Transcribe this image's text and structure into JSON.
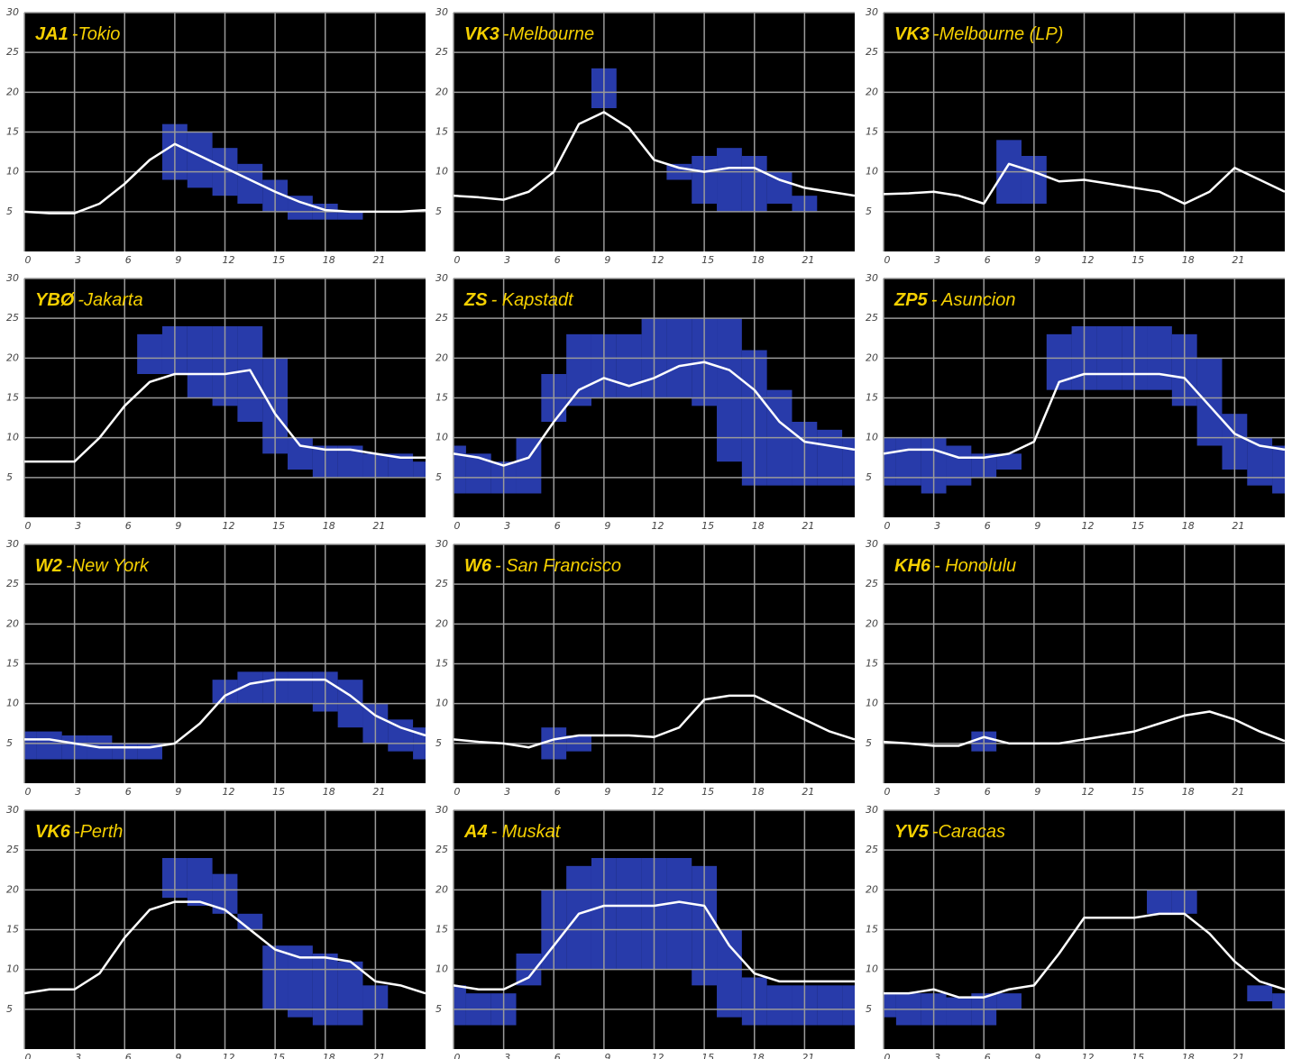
{
  "chart_data": [
    {
      "type": "line",
      "title_call": "JA1",
      "title_name": "-Tokio",
      "color": "#ffffff",
      "band_color": "#2f45c8",
      "x": [
        0,
        1.5,
        3,
        4.5,
        6,
        7.5,
        9,
        10.5,
        12,
        13.5,
        15,
        16.5,
        18,
        19.5,
        21,
        22.5,
        24
      ],
      "values": [
        5,
        4.8,
        4.8,
        6,
        8.5,
        11.5,
        13.5,
        12,
        10.5,
        9,
        7.5,
        6.2,
        5.2,
        5,
        5,
        5,
        5.2
      ],
      "band_low": [
        null,
        null,
        null,
        null,
        null,
        null,
        9,
        8,
        7,
        6,
        5,
        4,
        4,
        4,
        null,
        null,
        null
      ],
      "band_high": [
        null,
        null,
        null,
        null,
        null,
        null,
        16,
        15,
        13,
        11,
        9,
        7,
        6,
        5,
        null,
        null,
        null
      ],
      "xlim": [
        0,
        24
      ],
      "ylim": [
        0,
        30
      ],
      "xticks": [
        0,
        3,
        6,
        9,
        12,
        15,
        18,
        21
      ],
      "yticks": [
        5,
        10,
        15,
        20,
        25,
        30
      ]
    },
    {
      "type": "line",
      "title_call": "VK3",
      "title_name": "-Melbourne",
      "color": "#ffffff",
      "band_color": "#2f45c8",
      "x": [
        0,
        1.5,
        3,
        4.5,
        6,
        7.5,
        9,
        10.5,
        12,
        13.5,
        15,
        16.5,
        18,
        19.5,
        21,
        22.5,
        24
      ],
      "values": [
        7,
        6.8,
        6.5,
        7.5,
        10,
        16,
        17.5,
        15.5,
        11.5,
        10.5,
        10,
        10.5,
        10.5,
        9,
        8,
        7.5,
        7
      ],
      "band_low": [
        null,
        null,
        null,
        null,
        null,
        null,
        18,
        null,
        null,
        9,
        6,
        5,
        5,
        6,
        5,
        null,
        null
      ],
      "band_high": [
        null,
        null,
        null,
        null,
        null,
        null,
        23,
        null,
        null,
        11,
        12,
        13,
        12,
        10,
        7,
        null,
        null
      ],
      "xlim": [
        0,
        24
      ],
      "ylim": [
        0,
        30
      ],
      "xticks": [
        0,
        3,
        6,
        9,
        12,
        15,
        18,
        21
      ],
      "yticks": [
        5,
        10,
        15,
        20,
        25,
        30
      ]
    },
    {
      "type": "line",
      "title_call": "VK3",
      "title_name": "-Melbourne (LP)",
      "color": "#ffffff",
      "band_color": "#2f45c8",
      "x": [
        0,
        1.5,
        3,
        4.5,
        6,
        7.5,
        9,
        10.5,
        12,
        13.5,
        15,
        16.5,
        18,
        19.5,
        21,
        22.5,
        24
      ],
      "values": [
        7.2,
        7.3,
        7.5,
        7,
        6,
        11,
        10,
        8.8,
        9,
        8.5,
        8,
        7.5,
        6,
        7.5,
        10.5,
        9,
        7.5
      ],
      "band_low": [
        null,
        null,
        null,
        null,
        null,
        6,
        6,
        null,
        null,
        null,
        null,
        null,
        null,
        null,
        null,
        null,
        null
      ],
      "band_high": [
        null,
        null,
        null,
        null,
        null,
        14,
        12,
        null,
        null,
        null,
        null,
        null,
        null,
        null,
        null,
        null,
        null
      ],
      "xlim": [
        0,
        24
      ],
      "ylim": [
        0,
        30
      ],
      "xticks": [
        0,
        3,
        6,
        9,
        12,
        15,
        18,
        21
      ],
      "yticks": [
        5,
        10,
        15,
        20,
        25,
        30
      ]
    },
    {
      "type": "line",
      "title_call": "YBØ",
      "title_name": "-Jakarta",
      "color": "#ffffff",
      "band_color": "#2f45c8",
      "x": [
        0,
        1.5,
        3,
        4.5,
        6,
        7.5,
        9,
        10.5,
        12,
        13.5,
        15,
        16.5,
        18,
        19.5,
        21,
        22.5,
        24
      ],
      "values": [
        7,
        7,
        7,
        10,
        14,
        17,
        18,
        18,
        18,
        18.5,
        13,
        9,
        8.5,
        8.5,
        8,
        7.5,
        7.5
      ],
      "band_low": [
        null,
        null,
        null,
        null,
        null,
        18,
        18,
        15,
        14,
        12,
        8,
        6,
        5,
        5,
        5,
        5,
        5
      ],
      "band_high": [
        null,
        null,
        null,
        null,
        null,
        23,
        24,
        24,
        24,
        24,
        20,
        10,
        9,
        9,
        8,
        8,
        7
      ],
      "xlim": [
        0,
        24
      ],
      "ylim": [
        0,
        30
      ],
      "xticks": [
        0,
        3,
        6,
        9,
        12,
        15,
        18,
        21
      ],
      "yticks": [
        5,
        10,
        15,
        20,
        25,
        30
      ]
    },
    {
      "type": "line",
      "title_call": "ZS",
      "title_name": "- Kapstadt",
      "color": "#ffffff",
      "band_color": "#2f45c8",
      "x": [
        0,
        1.5,
        3,
        4.5,
        6,
        7.5,
        9,
        10.5,
        12,
        13.5,
        15,
        16.5,
        18,
        19.5,
        21,
        22.5,
        24
      ],
      "values": [
        8,
        7.5,
        6.5,
        7.5,
        12,
        16,
        17.5,
        16.5,
        17.5,
        19,
        19.5,
        18.5,
        16,
        12,
        9.5,
        9,
        8.5
      ],
      "band_low": [
        3,
        3,
        3,
        3,
        12,
        14,
        15,
        15,
        15,
        15,
        14,
        7,
        4,
        4,
        4,
        4,
        4
      ],
      "band_high": [
        9,
        8,
        7,
        10,
        18,
        23,
        23,
        23,
        25,
        25,
        25,
        25,
        21,
        16,
        12,
        11,
        10
      ],
      "xlim": [
        0,
        24
      ],
      "ylim": [
        0,
        30
      ],
      "xticks": [
        0,
        3,
        6,
        9,
        12,
        15,
        18,
        21
      ],
      "yticks": [
        5,
        10,
        15,
        20,
        25,
        30
      ]
    },
    {
      "type": "line",
      "title_call": "ZP5",
      "title_name": "- Asuncion",
      "color": "#ffffff",
      "band_color": "#2f45c8",
      "x": [
        0,
        1.5,
        3,
        4.5,
        6,
        7.5,
        9,
        10.5,
        12,
        13.5,
        15,
        16.5,
        18,
        19.5,
        21,
        22.5,
        24
      ],
      "values": [
        8,
        8.5,
        8.5,
        7.5,
        7.5,
        8,
        9.5,
        17,
        18,
        18,
        18,
        18,
        17.5,
        14,
        10.5,
        9,
        8.5
      ],
      "band_low": [
        4,
        4,
        3,
        4,
        5,
        6,
        null,
        16,
        16,
        16,
        16,
        16,
        14,
        9,
        6,
        4,
        3
      ],
      "band_high": [
        10,
        10,
        10,
        9,
        8,
        8,
        null,
        23,
        24,
        24,
        24,
        24,
        23,
        20,
        13,
        10,
        9
      ],
      "xlim": [
        0,
        24
      ],
      "ylim": [
        0,
        30
      ],
      "xticks": [
        0,
        3,
        6,
        9,
        12,
        15,
        18,
        21
      ],
      "yticks": [
        5,
        10,
        15,
        20,
        25,
        30
      ]
    },
    {
      "type": "line",
      "title_call": "W2",
      "title_name": "-New York",
      "color": "#ffffff",
      "band_color": "#2f45c8",
      "x": [
        0,
        1.5,
        3,
        4.5,
        6,
        7.5,
        9,
        10.5,
        12,
        13.5,
        15,
        16.5,
        18,
        19.5,
        21,
        22.5,
        24
      ],
      "values": [
        5.5,
        5.5,
        5,
        4.5,
        4.5,
        4.5,
        5,
        7.5,
        11,
        12.5,
        13,
        13,
        13,
        11,
        8.5,
        7,
        6
      ],
      "band_low": [
        3,
        3,
        3,
        3,
        3,
        3,
        null,
        null,
        10,
        10,
        10,
        10,
        9,
        7,
        5,
        4,
        3
      ],
      "band_high": [
        6.5,
        6.5,
        6,
        6,
        5,
        5,
        null,
        null,
        13,
        14,
        14,
        14,
        14,
        13,
        10,
        8,
        7
      ],
      "xlim": [
        0,
        24
      ],
      "ylim": [
        0,
        30
      ],
      "xticks": [
        0,
        3,
        6,
        9,
        12,
        15,
        18,
        21
      ],
      "yticks": [
        5,
        10,
        15,
        20,
        25,
        30
      ]
    },
    {
      "type": "line",
      "title_call": "W6",
      "title_name": "- San Francisco",
      "color": "#ffffff",
      "band_color": "#2f45c8",
      "x": [
        0,
        1.5,
        3,
        4.5,
        6,
        7.5,
        9,
        10.5,
        12,
        13.5,
        15,
        16.5,
        18,
        19.5,
        21,
        22.5,
        24
      ],
      "values": [
        5.5,
        5.2,
        5,
        4.5,
        5.5,
        6,
        6,
        6,
        5.8,
        7,
        10.5,
        11,
        11,
        9.5,
        8,
        6.5,
        5.5
      ],
      "band_low": [
        null,
        null,
        null,
        null,
        3,
        4,
        null,
        null,
        null,
        null,
        null,
        null,
        null,
        null,
        null,
        null,
        null
      ],
      "band_high": [
        null,
        null,
        null,
        null,
        7,
        6,
        null,
        null,
        null,
        null,
        null,
        null,
        null,
        null,
        null,
        null,
        null
      ],
      "xlim": [
        0,
        24
      ],
      "ylim": [
        0,
        30
      ],
      "xticks": [
        0,
        3,
        6,
        9,
        12,
        15,
        18,
        21
      ],
      "yticks": [
        5,
        10,
        15,
        20,
        25,
        30
      ]
    },
    {
      "type": "line",
      "title_call": "KH6",
      "title_name": "- Honolulu",
      "color": "#ffffff",
      "band_color": "#2f45c8",
      "x": [
        0,
        1.5,
        3,
        4.5,
        6,
        7.5,
        9,
        10.5,
        12,
        13.5,
        15,
        16.5,
        18,
        19.5,
        21,
        22.5,
        24
      ],
      "values": [
        5.2,
        5,
        4.7,
        4.7,
        5.8,
        5,
        5,
        5,
        5.5,
        6,
        6.5,
        7.5,
        8.5,
        9,
        8,
        6.5,
        5.3
      ],
      "band_low": [
        null,
        null,
        null,
        null,
        4,
        null,
        null,
        null,
        null,
        null,
        null,
        null,
        null,
        null,
        null,
        null,
        null
      ],
      "band_high": [
        null,
        null,
        null,
        null,
        6.5,
        null,
        null,
        null,
        null,
        null,
        null,
        null,
        null,
        null,
        null,
        null,
        null
      ],
      "xlim": [
        0,
        24
      ],
      "ylim": [
        0,
        30
      ],
      "xticks": [
        0,
        3,
        6,
        9,
        12,
        15,
        18,
        21
      ],
      "yticks": [
        5,
        10,
        15,
        20,
        25,
        30
      ]
    },
    {
      "type": "line",
      "title_call": "VK6",
      "title_name": "-Perth",
      "color": "#ffffff",
      "band_color": "#2f45c8",
      "x": [
        0,
        1.5,
        3,
        4.5,
        6,
        7.5,
        9,
        10.5,
        12,
        13.5,
        15,
        16.5,
        18,
        19.5,
        21,
        22.5,
        24
      ],
      "values": [
        7,
        7.5,
        7.5,
        9.5,
        14,
        17.5,
        18.5,
        18.5,
        17.5,
        15,
        12.5,
        11.5,
        11.5,
        11,
        8.5,
        8,
        7
      ],
      "band_low": [
        null,
        null,
        null,
        null,
        null,
        null,
        19,
        18,
        17,
        15,
        5,
        4,
        3,
        3,
        5,
        null,
        null
      ],
      "band_high": [
        null,
        null,
        null,
        null,
        null,
        null,
        24,
        24,
        22,
        17,
        13,
        13,
        12,
        11,
        8,
        null,
        null
      ],
      "xlim": [
        0,
        24
      ],
      "ylim": [
        0,
        30
      ],
      "xticks": [
        0,
        3,
        6,
        9,
        12,
        15,
        18,
        21
      ],
      "yticks": [
        5,
        10,
        15,
        20,
        25,
        30
      ]
    },
    {
      "type": "line",
      "title_call": "A4",
      "title_name": "- Muskat",
      "color": "#ffffff",
      "band_color": "#2f45c8",
      "x": [
        0,
        1.5,
        3,
        4.5,
        6,
        7.5,
        9,
        10.5,
        12,
        13.5,
        15,
        16.5,
        18,
        19.5,
        21,
        22.5,
        24
      ],
      "values": [
        8,
        7.5,
        7.5,
        9,
        13,
        17,
        18,
        18,
        18,
        18.5,
        18,
        13,
        9.5,
        8.5,
        8.5,
        8.5,
        8.5
      ],
      "band_low": [
        3,
        3,
        3,
        8,
        10,
        10,
        10,
        10,
        10,
        10,
        8,
        4,
        3,
        3,
        3,
        3,
        3
      ],
      "band_high": [
        8,
        7,
        7,
        12,
        20,
        23,
        24,
        24,
        24,
        24,
        23,
        15,
        9,
        8,
        8,
        8,
        8
      ],
      "xlim": [
        0,
        24
      ],
      "ylim": [
        0,
        30
      ],
      "xticks": [
        0,
        3,
        6,
        9,
        12,
        15,
        18,
        21
      ],
      "yticks": [
        5,
        10,
        15,
        20,
        25,
        30
      ]
    },
    {
      "type": "line",
      "title_call": "YV5",
      "title_name": "-Caracas",
      "color": "#ffffff",
      "band_color": "#2f45c8",
      "x": [
        0,
        1.5,
        3,
        4.5,
        6,
        7.5,
        9,
        10.5,
        12,
        13.5,
        15,
        16.5,
        18,
        19.5,
        21,
        22.5,
        24
      ],
      "values": [
        7,
        7,
        7.5,
        6.5,
        6.5,
        7.5,
        8,
        12,
        16.5,
        16.5,
        16.5,
        17,
        17,
        14.5,
        11,
        8.5,
        7.5
      ],
      "band_low": [
        4,
        3,
        3,
        3,
        3,
        5,
        null,
        null,
        null,
        null,
        null,
        17,
        17,
        null,
        null,
        6,
        5
      ],
      "band_high": [
        7,
        7,
        7,
        6.5,
        7,
        7,
        null,
        null,
        null,
        null,
        null,
        20,
        20,
        null,
        null,
        8,
        7
      ],
      "xlim": [
        0,
        24
      ],
      "ylim": [
        0,
        30
      ],
      "xticks": [
        0,
        3,
        6,
        9,
        12,
        15,
        18,
        21
      ],
      "yticks": [
        5,
        10,
        15,
        20,
        25,
        30
      ]
    }
  ]
}
